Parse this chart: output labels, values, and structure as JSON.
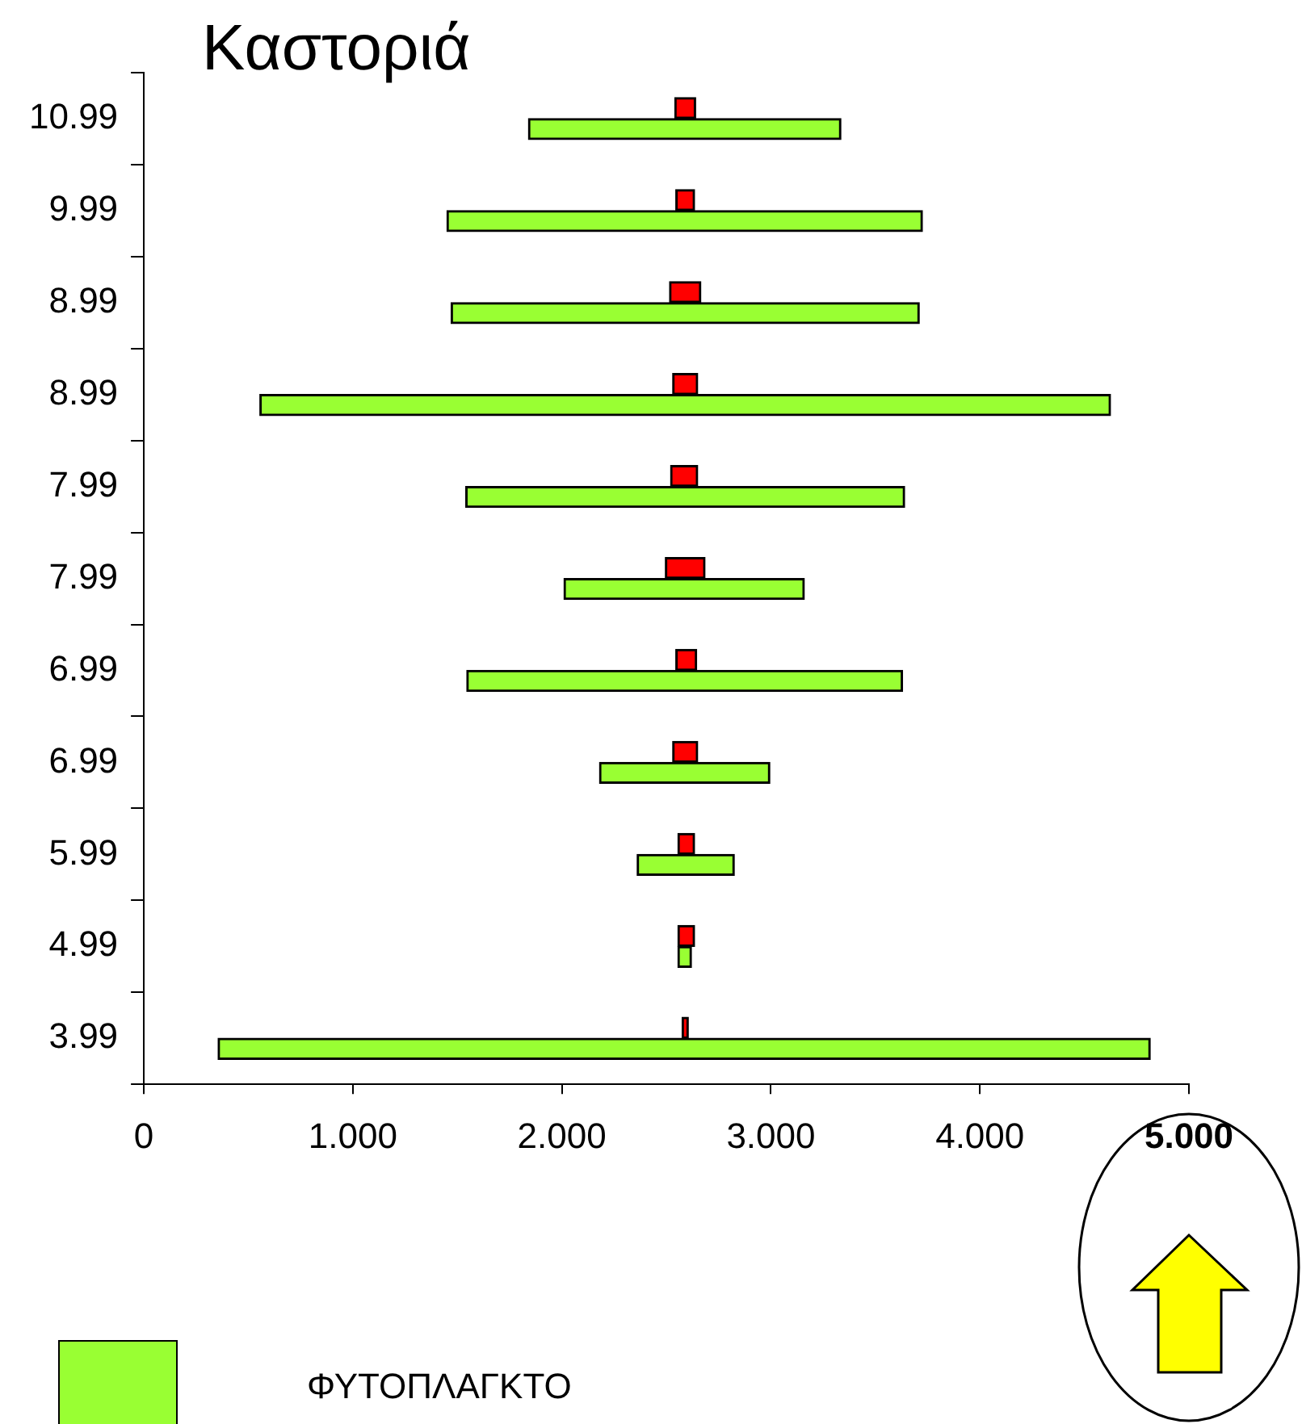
{
  "chart_data": {
    "type": "bar",
    "orientation": "horizontal",
    "title": "Καστοριά",
    "categories": [
      "10.99",
      "9.99",
      "8.99",
      "8.99",
      "7.99",
      "7.99",
      "6.99",
      "6.99",
      "5.99",
      "4.99",
      "3.99"
    ],
    "series": [
      {
        "color": "#ff0000",
        "base": [
          2.54,
          2.545,
          2.515,
          2.53,
          2.52,
          2.495,
          2.545,
          2.53,
          2.555,
          2.555,
          2.575
        ],
        "values": [
          0.1,
          0.09,
          0.15,
          0.12,
          0.13,
          0.19,
          0.1,
          0.12,
          0.08,
          0.08,
          0.03
        ]
      },
      {
        "name": "ΦΥΤΟΠΛΑΓΚΤΟ",
        "color": "#99ff33",
        "base": [
          1.84,
          1.45,
          1.47,
          0.555,
          1.54,
          2.01,
          1.545,
          2.18,
          2.36,
          2.555,
          0.355
        ],
        "values": [
          1.495,
          2.275,
          2.24,
          4.07,
          2.1,
          1.15,
          2.085,
          0.815,
          0.465,
          0.065,
          4.46
        ]
      }
    ],
    "xlim": [
      0,
      5
    ],
    "xticks": [
      0,
      {
        "value": 1,
        "label": "1.000"
      },
      {
        "value": 2,
        "label": "2.000"
      },
      {
        "value": 3,
        "label": "3.000"
      },
      {
        "value": 4,
        "label": "4.000"
      },
      {
        "value": 5,
        "label": "5.000"
      }
    ],
    "grid": false,
    "legend": "bottom"
  }
}
